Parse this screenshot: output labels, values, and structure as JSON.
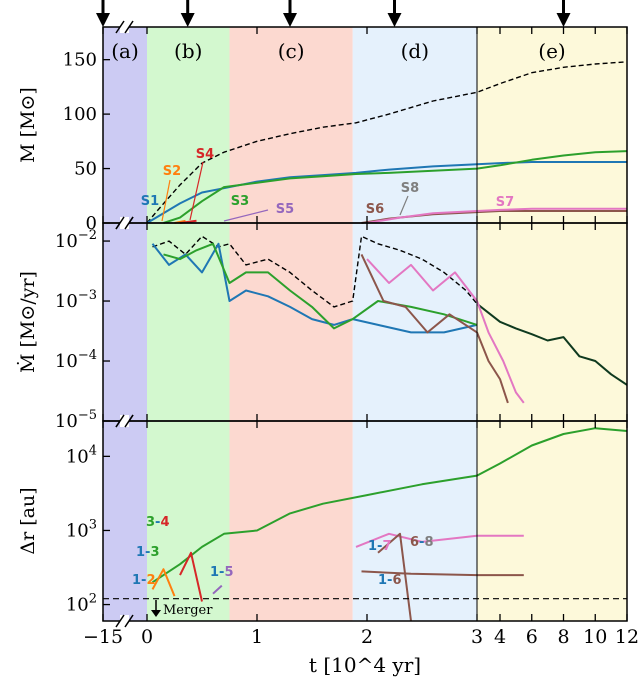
{
  "chart_data": {
    "type": "line",
    "x_axis": {
      "label": "t [10^4 yr]",
      "tick_labels": [
        "−15",
        "0",
        "1",
        "2",
        "3",
        "4",
        "6",
        "8",
        "10",
        "12"
      ],
      "axis_breaks": [
        "−15..0 (break)",
        "3..4 (scale change)"
      ]
    },
    "epochs": [
      {
        "label": "(a)",
        "color": "#cccbf3",
        "range": [
          -15,
          0
        ]
      },
      {
        "label": "(b)",
        "color": "#d3f8cf",
        "range": [
          0,
          0.75
        ]
      },
      {
        "label": "(c)",
        "color": "#fcd9d0",
        "range": [
          0.75,
          1.87
        ]
      },
      {
        "label": "(d)",
        "color": "#e5f1fc",
        "range": [
          1.87,
          3.0
        ]
      },
      {
        "label": "(e)",
        "color": "#fdf9da",
        "range": [
          3.0,
          12
        ]
      }
    ],
    "arrow_times": [
      -15,
      0.37,
      1.3,
      2.25,
      8
    ],
    "panels": [
      {
        "id": "mass",
        "ylabel": "M [M⊙]",
        "yticks": [
          "0",
          "50",
          "100",
          "150"
        ],
        "ylim": [
          0,
          180
        ],
        "star_labels": [
          {
            "text": "S1",
            "color": "#1f77b4"
          },
          {
            "text": "S2",
            "color": "#ff7f0e"
          },
          {
            "text": "S3",
            "color": "#2ca02c"
          },
          {
            "text": "S4",
            "color": "#d62728"
          },
          {
            "text": "S5",
            "color": "#9467bd"
          },
          {
            "text": "S6",
            "color": "#8c564b"
          },
          {
            "text": "S7",
            "color": "#e377c2"
          },
          {
            "text": "S8",
            "color": "#7f7f7f"
          }
        ],
        "series": [
          {
            "name": "Total",
            "style": "dashed",
            "color": "#000000",
            "x": [
              0,
              0.1,
              0.3,
              0.5,
              0.7,
              1.0,
              1.3,
              1.6,
              1.9,
              2.2,
              2.6,
              3.0,
              4,
              6,
              8,
              10,
              12
            ],
            "y": [
              0,
              12,
              35,
              55,
              65,
              75,
              82,
              88,
              92,
              100,
              112,
              120,
              128,
              138,
              143,
              146,
              148
            ]
          },
          {
            "name": "S1",
            "style": "solid",
            "color": "#1f77b4",
            "x": [
              0,
              0.1,
              0.3,
              0.5,
              0.7,
              1.0,
              1.3,
              1.6,
              1.9,
              2.2,
              2.6,
              3.0,
              4,
              6,
              8,
              10,
              12
            ],
            "y": [
              0,
              6,
              18,
              28,
              32,
              38,
              42,
              44,
              46,
              49,
              52,
              54,
              55,
              56,
              56,
              56,
              56
            ]
          },
          {
            "name": "S3",
            "style": "solid",
            "color": "#2ca02c",
            "x": [
              0.15,
              0.3,
              0.5,
              0.7,
              1.0,
              1.3,
              1.6,
              1.9,
              2.2,
              2.6,
              3.0,
              4,
              6,
              8,
              10,
              12
            ],
            "y": [
              0,
              5,
              20,
              33,
              37,
              41,
              43,
              45,
              46,
              48,
              50,
              53,
              58,
              62,
              65,
              66
            ]
          },
          {
            "name": "S2",
            "style": "solid",
            "color": "#ff7f0e",
            "x": [
              0.25,
              0.35
            ],
            "y": [
              0,
              2
            ]
          },
          {
            "name": "S4",
            "style": "solid",
            "color": "#d62728",
            "x": [
              0.3,
              0.45
            ],
            "y": [
              0,
              2
            ]
          },
          {
            "name": "S6",
            "style": "solid",
            "color": "#8c564b",
            "x": [
              1.95,
              2.2,
              2.6,
              3.0,
              4,
              6,
              8,
              10,
              12
            ],
            "y": [
              0,
              4,
              8,
              10,
              11,
              11,
              11,
              11,
              11
            ]
          },
          {
            "name": "S7",
            "style": "solid",
            "color": "#e377c2",
            "x": [
              2.0,
              2.3,
              2.6,
              3.0,
              4,
              6,
              8,
              10,
              12
            ],
            "y": [
              0,
              5,
              9,
              11,
              12,
              13,
              13,
              13,
              13
            ]
          }
        ]
      },
      {
        "id": "mdot",
        "ylabel": "Ṁ [M⊙/yr]",
        "yticks": [
          "10^−5",
          "10^−4",
          "10^−3",
          "10^−2"
        ],
        "yscale": "log",
        "ylim": [
          1e-05,
          0.02
        ],
        "series": [
          {
            "name": "Total",
            "style": "dashed",
            "color": "#000000",
            "x": [
              0.05,
              0.2,
              0.35,
              0.5,
              0.65,
              0.75,
              0.9,
              1.1,
              1.3,
              1.5,
              1.7,
              1.87,
              1.95,
              2.1,
              2.3,
              2.5,
              2.7,
              2.9,
              3.0
            ],
            "y": [
              0.008,
              0.01,
              0.006,
              0.012,
              0.008,
              0.009,
              0.004,
              0.005,
              0.003,
              0.0015,
              0.0008,
              0.001,
              0.012,
              0.009,
              0.007,
              0.005,
              0.003,
              0.0015,
              0.0009
            ]
          },
          {
            "name": "Total (late)",
            "style": "solid",
            "color": "#0f3a1f",
            "x": [
              3.0,
              4,
              5,
              6,
              7,
              8,
              9,
              10,
              11,
              12
            ],
            "y": [
              0.0009,
              0.00045,
              0.00035,
              0.00028,
              0.00022,
              0.00025,
              0.00012,
              0.0001,
              6e-05,
              4e-05
            ]
          },
          {
            "name": "S1",
            "style": "solid",
            "color": "#1f77b4",
            "x": [
              0.05,
              0.2,
              0.35,
              0.5,
              0.65,
              0.75,
              0.9,
              1.1,
              1.3,
              1.5,
              1.7,
              1.87,
              2.1,
              2.4,
              2.7,
              3.0
            ],
            "y": [
              0.009,
              0.004,
              0.006,
              0.003,
              0.009,
              0.001,
              0.0015,
              0.0012,
              0.0008,
              0.0005,
              0.0004,
              0.0005,
              0.0004,
              0.0003,
              0.0003,
              0.0004
            ]
          },
          {
            "name": "S3",
            "style": "solid",
            "color": "#2ca02c",
            "x": [
              0.15,
              0.3,
              0.45,
              0.6,
              0.75,
              0.9,
              1.1,
              1.3,
              1.5,
              1.7,
              1.87,
              2.1,
              2.4,
              2.7,
              3.0
            ],
            "y": [
              0.006,
              0.005,
              0.007,
              0.009,
              0.002,
              0.003,
              0.003,
              0.0015,
              0.0008,
              0.00035,
              0.0005,
              0.001,
              0.0008,
              0.0006,
              0.0004
            ]
          },
          {
            "name": "S7",
            "style": "solid",
            "color": "#e377c2",
            "x": [
              2.0,
              2.2,
              2.4,
              2.6,
              2.8,
              3.0,
              3.5,
              4.2,
              5.0,
              5.5
            ],
            "y": [
              0.005,
              0.002,
              0.004,
              0.0015,
              0.003,
              0.001,
              0.0003,
              0.0001,
              3e-05,
              2e-05
            ]
          },
          {
            "name": "S6",
            "style": "solid",
            "color": "#8c564b",
            "x": [
              1.95,
              2.15,
              2.35,
              2.55,
              2.75,
              3.0,
              3.5,
              4.0,
              4.5
            ],
            "y": [
              0.006,
              0.001,
              0.0008,
              0.0003,
              0.0006,
              0.0003,
              0.0001,
              5e-05,
              2e-05
            ]
          }
        ]
      },
      {
        "id": "dr",
        "ylabel": "Δr [au]",
        "yticks": [
          "10^2",
          "10^3",
          "10^4"
        ],
        "yscale": "log",
        "ylim": [
          60,
          30000
        ],
        "merger_label": "Merger",
        "pair_labels": [
          "3-4",
          "1-3",
          "1-2",
          "1-5",
          "1-7",
          "6-8",
          "1-6"
        ],
        "merger_threshold_au": 120,
        "series": [
          {
            "name": "1-3",
            "style": "solid",
            "color": "#2ca02c",
            "x": [
              0.05,
              0.3,
              0.5,
              0.7,
              1.0,
              1.3,
              1.6,
              2.0,
              2.5,
              3.0,
              4,
              6,
              8,
              10,
              12
            ],
            "y": [
              200,
              350,
              600,
              900,
              1000,
              1700,
              2300,
              3000,
              4200,
              5500,
              8000,
              14000,
              20000,
              24000,
              22000
            ]
          },
          {
            "name": "1-2",
            "style": "solid",
            "color": "#ff7f0e",
            "x": [
              0.05,
              0.15,
              0.25
            ],
            "y": [
              160,
              300,
              130
            ]
          },
          {
            "name": "3-4",
            "style": "solid",
            "color": "#d62728",
            "x": [
              0.3,
              0.4,
              0.5
            ],
            "y": [
              250,
              500,
              110
            ]
          },
          {
            "name": "1-5",
            "style": "solid",
            "color": "#9467bd",
            "x": [
              0.6,
              0.68
            ],
            "y": [
              140,
              180
            ]
          },
          {
            "name": "1-7",
            "style": "solid",
            "color": "#e377c2",
            "x": [
              1.9,
              2.2,
              2.5,
              3.0,
              4,
              5.5
            ],
            "y": [
              600,
              900,
              700,
              850,
              850,
              850
            ]
          },
          {
            "name": "6-8",
            "style": "solid",
            "color": "#8c564b",
            "x": [
              2.1,
              2.3,
              2.4
            ],
            "y": [
              500,
              900,
              60
            ]
          },
          {
            "name": "1-6",
            "style": "solid",
            "color": "#8c564b",
            "x": [
              1.95,
              2.4,
              3.0,
              4,
              5.5
            ],
            "y": [
              280,
              260,
              250,
              250,
              250
            ]
          }
        ]
      }
    ]
  }
}
